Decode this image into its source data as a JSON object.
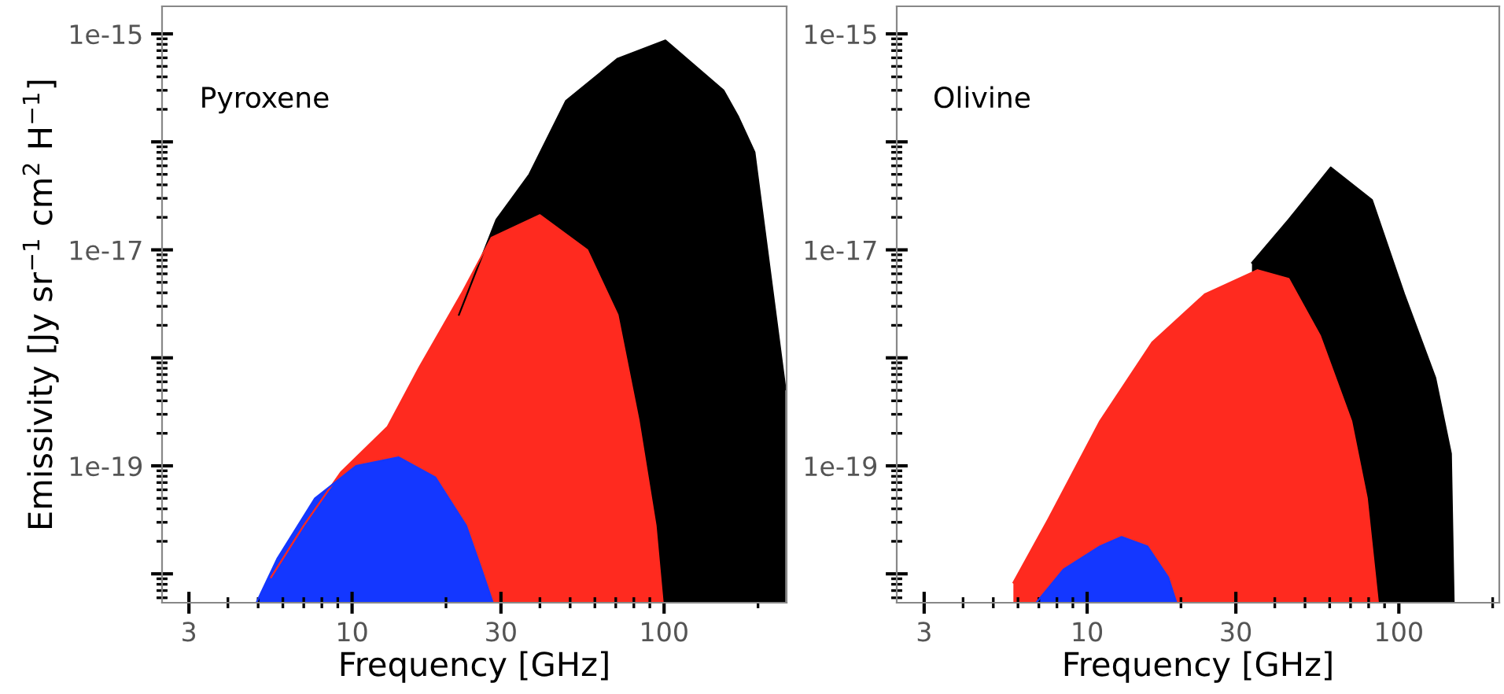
{
  "chart_data": [
    {
      "type": "area",
      "ylabel": "Emissivity [Jy sr$^{−1}$ cm$^{2}$ H$^{−1}$]",
      "xlabel": "Frequency [GHz]",
      "annotations": [
        "Pyroxene"
      ],
      "log": "xy",
      "grid": false,
      "legend": false,
      "xlim": [
        2.46,
        247
      ],
      "xticks": [
        3,
        10,
        30,
        100
      ],
      "ylim": [
        5.4e-21,
        1.8e-15
      ],
      "yticks": [
        {
          "value": 1e-15,
          "label": "1e-15"
        },
        {
          "value": 1e-16,
          "label": null
        },
        {
          "value": 1e-17,
          "label": "1e-17"
        },
        {
          "value": 1e-18,
          "label": null
        },
        {
          "value": 1e-19,
          "label": "1e-19"
        },
        {
          "value": 1e-20,
          "label": null
        }
      ],
      "series": [
        {
          "color": "#000000",
          "x": [
            22,
            29,
            37,
            48.5,
            71,
            101,
            155,
            173,
            195,
            245
          ],
          "values": [
            2.5e-18,
            1.9e-17,
            5e-17,
            2.4e-16,
            5.9e-16,
            8.7e-16,
            3e-16,
            1.7e-16,
            8e-17,
            5.1e-19
          ]
        },
        {
          "color": "#ff2a1f",
          "x": [
            5.5,
            7,
            9.2,
            13,
            16.4,
            22.4,
            28,
            40,
            56.7,
            71,
            83,
            94,
            99
          ],
          "values": [
            9.3e-21,
            2.8e-20,
            8.7e-20,
            2.3e-19,
            8.1e-19,
            3.9e-18,
            1.3e-17,
            2.1e-17,
            1e-17,
            2.5e-18,
            2.6e-19,
            2.8e-20,
            5.5e-21
          ]
        },
        {
          "color": "#1437ff",
          "x": [
            4.95,
            5.77,
            7.6,
            10.3,
            14.1,
            18.5,
            23.2,
            26,
            28.2
          ],
          "values": [
            5.5e-21,
            1.4e-20,
            5e-20,
            1e-19,
            1.2e-19,
            7.8e-20,
            2.8e-20,
            1.1e-20,
            5.5e-21
          ]
        }
      ]
    },
    {
      "type": "area",
      "xlabel": "Frequency [GHz]",
      "annotations": [
        "Olivine"
      ],
      "log": "xy",
      "grid": false,
      "legend": false,
      "xlim": [
        2.45,
        210
      ],
      "xticks": [
        3,
        10,
        30,
        100
      ],
      "ylim": [
        5.4e-21,
        1.8e-15
      ],
      "yticks": [
        {
          "value": 1e-15,
          "label": "1e-15"
        },
        {
          "value": 1e-16,
          "label": null
        },
        {
          "value": 1e-17,
          "label": "1e-17"
        },
        {
          "value": 1e-18,
          "label": null
        },
        {
          "value": 1e-19,
          "label": "1e-19"
        },
        {
          "value": 1e-20,
          "label": null
        }
      ],
      "series": [
        {
          "color": "#000000",
          "x": [
            33.8,
            44.3,
            60.5,
            82,
            104,
            131,
            147,
            150
          ],
          "values": [
            7.6e-18,
            1.9e-17,
            5.8e-17,
            2.9e-17,
            3.9e-18,
            6.5e-19,
            1.3e-19,
            5.5e-21
          ]
        },
        {
          "color": "#ff2a1f",
          "x": [
            5.8,
            7.5,
            11,
            16.2,
            23.9,
            35.2,
            44.3,
            55.9,
            70.4,
            79,
            85.7
          ],
          "values": [
            8.3e-21,
            3.2e-20,
            2.6e-19,
            1.4e-18,
            3.9e-18,
            6.5e-18,
            5.4e-18,
            1.6e-18,
            2.6e-19,
            5e-20,
            5.5e-21
          ]
        },
        {
          "color": "#1437ff",
          "x": [
            6.9,
            8.4,
            11,
            12.9,
            15.6,
            18.2,
            19.3
          ],
          "values": [
            5.5e-21,
            1.1e-20,
            1.8e-20,
            2.2e-20,
            1.8e-20,
            9.3e-21,
            5.5e-21
          ]
        }
      ]
    }
  ]
}
